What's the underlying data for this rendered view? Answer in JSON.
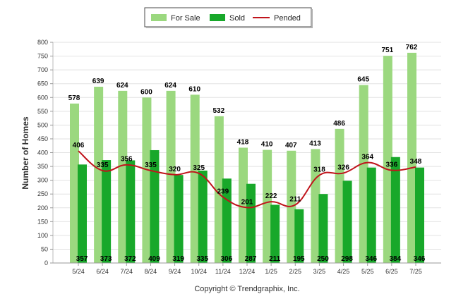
{
  "chart_data": {
    "type": "bar",
    "ylabel": "Number of Homes",
    "ylim": [
      0,
      800
    ],
    "yticks": [
      0,
      50,
      100,
      150,
      200,
      250,
      300,
      350,
      400,
      450,
      500,
      550,
      600,
      650,
      700,
      750,
      800
    ],
    "categories": [
      "5/24",
      "6/24",
      "7/24",
      "8/24",
      "9/24",
      "10/24",
      "11/24",
      "12/24",
      "1/25",
      "2/25",
      "3/25",
      "4/25",
      "5/25",
      "6/25",
      "7/25"
    ],
    "series": [
      {
        "name": "For Sale",
        "type": "bar",
        "color": "#9bd87f",
        "values": [
          578,
          639,
          624,
          600,
          624,
          610,
          532,
          418,
          410,
          407,
          413,
          486,
          645,
          751,
          762
        ]
      },
      {
        "name": "Sold",
        "type": "bar",
        "color": "#18a82a",
        "values": [
          357,
          373,
          372,
          409,
          319,
          335,
          306,
          287,
          211,
          195,
          250,
          298,
          346,
          384,
          346
        ]
      },
      {
        "name": "Pended",
        "type": "line",
        "color": "#c0141c",
        "values": [
          406,
          335,
          356,
          335,
          320,
          325,
          239,
          201,
          222,
          211,
          318,
          326,
          364,
          336,
          348
        ]
      }
    ],
    "grid": true,
    "legend_position": "top-center"
  },
  "copyright": "Copyright © Trendgraphix, Inc."
}
